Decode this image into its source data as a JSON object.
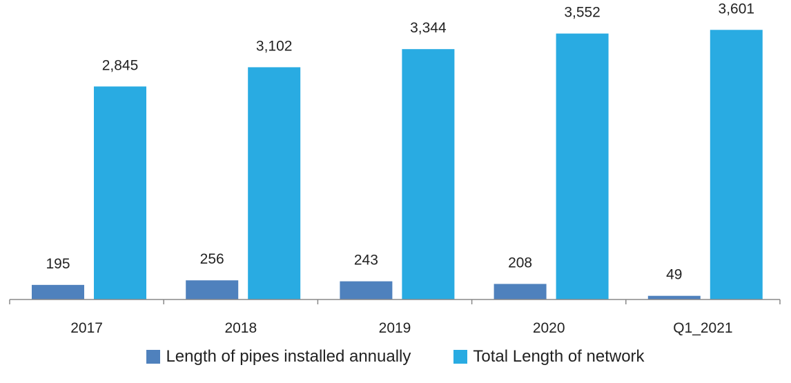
{
  "colors": {
    "annual": "#4f81bd",
    "total": "#29abe2",
    "axis": "#888888"
  },
  "chart_data": {
    "type": "bar",
    "title": "",
    "xlabel": "",
    "ylabel": "",
    "categories": [
      "2017",
      "2018",
      "2019",
      "2020",
      "Q1_2021"
    ],
    "series": [
      {
        "name": "Length of pipes installed annually",
        "values": [
          195,
          256,
          243,
          208,
          49
        ],
        "labels": [
          "195",
          "256",
          "243",
          "208",
          "49"
        ]
      },
      {
        "name": "Total Length of network",
        "values": [
          2845,
          3102,
          3344,
          3552,
          3601
        ],
        "labels": [
          "2,845",
          "3,102",
          "3,344",
          "3,552",
          "3,601"
        ]
      }
    ],
    "ylim": [
      0,
      4000
    ],
    "grid": false,
    "legend_position": "bottom"
  }
}
